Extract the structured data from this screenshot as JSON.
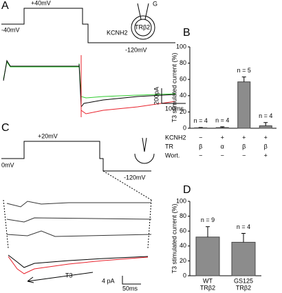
{
  "panel_labels": [
    "A",
    "B",
    "C",
    "D"
  ],
  "panel_a": {
    "voltages": [
      "+40mV",
      "-40mV",
      "-120mV"
    ],
    "cell_labels": [
      "G",
      "TRβ2",
      "KCNH2"
    ],
    "scale": [
      "200pA",
      "100ms"
    ]
  },
  "panel_c": {
    "voltages": [
      "+20mV",
      "0mV",
      "-120mV"
    ],
    "arrow_label": "T3",
    "scale": [
      "4 pA",
      "50ms"
    ]
  },
  "chart_data": [
    {
      "type": "bar",
      "y_label": "T3 stimulated current (%)",
      "categories": [
        null,
        null,
        null,
        null
      ],
      "values": [
        0.5,
        0.8,
        57,
        3
      ],
      "errors": [
        0.5,
        1,
        6,
        4
      ],
      "annotations": [
        "n = 4",
        "n = 4",
        "n = 5",
        "n = 4"
      ],
      "condition_rows": [
        {
          "name": "KCNH2",
          "values": [
            "−",
            "+",
            "+",
            "+"
          ]
        },
        {
          "name": "TR",
          "values": [
            "β",
            "α",
            "β",
            "β"
          ]
        },
        {
          "name": "Wort.",
          "values": [
            "−",
            "−",
            "−",
            "+"
          ]
        }
      ],
      "color": "#8c8c8c",
      "ylim": [
        0,
        100
      ],
      "yticks": [
        0,
        20,
        40,
        60,
        80,
        100
      ]
    },
    {
      "type": "bar",
      "y_label": "T3 stimulated current (%)",
      "categories": [
        "WT",
        "GS125"
      ],
      "subcategories": [
        "TRβ2",
        "TRβ2"
      ],
      "values": [
        52,
        45
      ],
      "errors": [
        14,
        12
      ],
      "annotations": [
        "n = 9",
        "n = 4"
      ],
      "color": "#8c8c8c",
      "ylim": [
        0,
        100
      ],
      "yticks": [
        0,
        20,
        40,
        60,
        80,
        100
      ]
    }
  ]
}
